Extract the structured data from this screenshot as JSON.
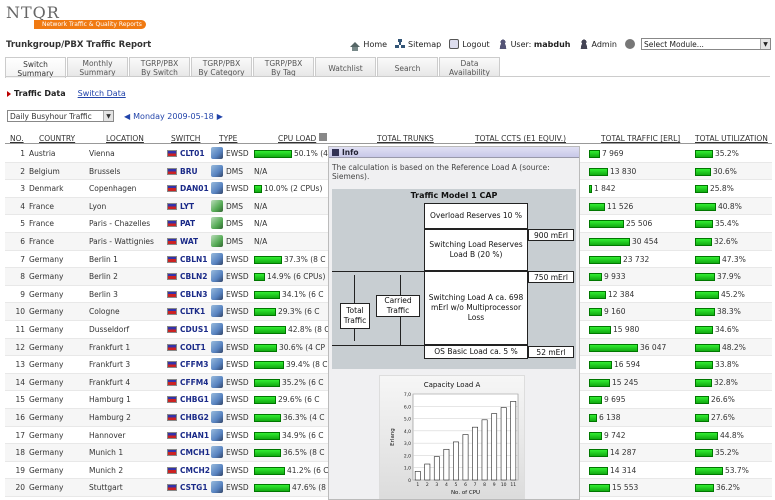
{
  "logo": {
    "text": "NTQR",
    "tagline": "Network Traffic & Quality Reports"
  },
  "page_title": "Trunkgroup/PBX Traffic Report",
  "topbar": {
    "home": "Home",
    "sitemap": "Sitemap",
    "logout": "Logout",
    "user_label": "User:",
    "user_name": "mabduh",
    "admin": "Admin",
    "module_select": "Select Module..."
  },
  "tabs": [
    {
      "line1": "Switch",
      "line2": "Summary",
      "active": true
    },
    {
      "line1": "Monthly",
      "line2": "Summary"
    },
    {
      "line1": "TGRP/PBX",
      "line2": "By Switch"
    },
    {
      "line1": "TGRP/PBX",
      "line2": "By Category"
    },
    {
      "line1": "TGRP/PBX",
      "line2": "By Tag"
    },
    {
      "line1": "Watchlist",
      "line2": ""
    },
    {
      "line1": "Search",
      "line2": ""
    },
    {
      "line1": "Data",
      "line2": "Availability"
    }
  ],
  "subnav": {
    "traffic_data": "Traffic Data",
    "switch_data": "Switch Data"
  },
  "filter": {
    "selected": "Daily Busyhour Traffic"
  },
  "date_nav": {
    "date": "Monday 2009-05-18"
  },
  "columns": {
    "no": "NO.",
    "country": "COUNTRY",
    "location": "LOCATION",
    "switch": "SWITCH",
    "type": "TYPE",
    "cpu_load": "CPU LOAD",
    "total_trunks": "TOTAL TRUNKS",
    "total_ccts": "TOTAL CCTS (E1 EQUIV.)",
    "total_traffic": "TOTAL TRAFFIC [ERL]",
    "total_util": "TOTAL UTILIZATION"
  },
  "rows": [
    {
      "no": "1",
      "country": "Austria",
      "location": "Vienna",
      "switch": "CLT01",
      "cube": "b",
      "type": "EWSD",
      "cpu": "50.1% (4",
      "cpu_pct": 50.1,
      "traffic": "7 969",
      "traffic_frac": 0.18,
      "util": "35.2%",
      "util_pct": 35.2
    },
    {
      "no": "2",
      "country": "Belgium",
      "location": "Brussels",
      "switch": "BRU",
      "cube": "b",
      "type": "DMS",
      "cpu": "N/A",
      "cpu_pct": 0,
      "traffic": "13 830",
      "traffic_frac": 0.31,
      "util": "30.6%",
      "util_pct": 30.6
    },
    {
      "no": "3",
      "country": "Denmark",
      "location": "Copenhagen",
      "switch": "DAN01",
      "cube": "b",
      "type": "EWSD",
      "cpu": "10.0% (2 CPUs)",
      "cpu_pct": 10.0,
      "traffic": "1 842",
      "traffic_frac": 0.05,
      "util": "25.8%",
      "util_pct": 25.8
    },
    {
      "no": "4",
      "country": "France",
      "location": "Lyon",
      "switch": "LYT",
      "cube": "g",
      "type": "DMS",
      "cpu": "N/A",
      "cpu_pct": 0,
      "traffic": "11 526",
      "traffic_frac": 0.26,
      "util": "40.8%",
      "util_pct": 40.8
    },
    {
      "no": "5",
      "country": "France",
      "location": "Paris - Chazelles",
      "switch": "PAT",
      "cube": "g",
      "type": "DMS",
      "cpu": "N/A",
      "cpu_pct": 0,
      "traffic": "25 506",
      "traffic_frac": 0.58,
      "util": "35.4%",
      "util_pct": 35.4
    },
    {
      "no": "6",
      "country": "France",
      "location": "Paris - Wattignies",
      "switch": "WAT",
      "cube": "g",
      "type": "DMS",
      "cpu": "N/A",
      "cpu_pct": 0,
      "traffic": "30 454",
      "traffic_frac": 0.69,
      "util": "32.6%",
      "util_pct": 32.6
    },
    {
      "no": "7",
      "country": "Germany",
      "location": "Berlin 1",
      "switch": "CBLN1",
      "cube": "b",
      "type": "EWSD",
      "cpu": "37.3% (8 C",
      "cpu_pct": 37.3,
      "traffic": "23 732",
      "traffic_frac": 0.54,
      "util": "47.3%",
      "util_pct": 47.3
    },
    {
      "no": "8",
      "country": "Germany",
      "location": "Berlin 2",
      "switch": "CBLN2",
      "cube": "b",
      "type": "EWSD",
      "cpu": "14.9% (6 CPUs)",
      "cpu_pct": 14.9,
      "traffic": "9 933",
      "traffic_frac": 0.22,
      "util": "37.9%",
      "util_pct": 37.9
    },
    {
      "no": "9",
      "country": "Germany",
      "location": "Berlin 3",
      "switch": "CBLN3",
      "cube": "b",
      "type": "EWSD",
      "cpu": "34.1% (6 C",
      "cpu_pct": 34.1,
      "traffic": "12 384",
      "traffic_frac": 0.28,
      "util": "45.2%",
      "util_pct": 45.2
    },
    {
      "no": "10",
      "country": "Germany",
      "location": "Cologne",
      "switch": "CLTK1",
      "cube": "b",
      "type": "EWSD",
      "cpu": "29.3% (6 C",
      "cpu_pct": 29.3,
      "traffic": "9 160",
      "traffic_frac": 0.21,
      "util": "38.3%",
      "util_pct": 38.3
    },
    {
      "no": "11",
      "country": "Germany",
      "location": "Dusseldorf",
      "switch": "CDUS1",
      "cube": "b",
      "type": "EWSD",
      "cpu": "42.8% (8 C",
      "cpu_pct": 42.8,
      "traffic": "15 980",
      "traffic_frac": 0.36,
      "util": "34.6%",
      "util_pct": 34.6
    },
    {
      "no": "12",
      "country": "Germany",
      "location": "Frankfurt 1",
      "switch": "COLT1",
      "cube": "b",
      "type": "EWSD",
      "cpu": "30.6% (4 CP",
      "cpu_pct": 30.6,
      "traffic": "36 047",
      "traffic_frac": 0.82,
      "util": "48.2%",
      "util_pct": 48.2
    },
    {
      "no": "13",
      "country": "Germany",
      "location": "Frankfurt 3",
      "switch": "CFFM3",
      "cube": "b",
      "type": "EWSD",
      "cpu": "39.4% (8 C",
      "cpu_pct": 39.4,
      "traffic": "16 594",
      "traffic_frac": 0.38,
      "util": "33.8%",
      "util_pct": 33.8
    },
    {
      "no": "14",
      "country": "Germany",
      "location": "Frankfurt 4",
      "switch": "CFFM4",
      "cube": "b",
      "type": "EWSD",
      "cpu": "35.2% (6 C",
      "cpu_pct": 35.2,
      "traffic": "15 245",
      "traffic_frac": 0.35,
      "util": "32.8%",
      "util_pct": 32.8
    },
    {
      "no": "15",
      "country": "Germany",
      "location": "Hamburg 1",
      "switch": "CHBG1",
      "cube": "b",
      "type": "EWSD",
      "cpu": "29.6% (6 C",
      "cpu_pct": 29.6,
      "traffic": "9 695",
      "traffic_frac": 0.22,
      "util": "26.6%",
      "util_pct": 26.6
    },
    {
      "no": "16",
      "country": "Germany",
      "location": "Hamburg 2",
      "switch": "CHBG2",
      "cube": "b",
      "type": "EWSD",
      "cpu": "36.3% (4 C",
      "cpu_pct": 36.3,
      "traffic": "6 138",
      "traffic_frac": 0.14,
      "util": "27.6%",
      "util_pct": 27.6
    },
    {
      "no": "17",
      "country": "Germany",
      "location": "Hannover",
      "switch": "CHAN1",
      "cube": "b",
      "type": "EWSD",
      "cpu": "34.9% (6 C",
      "cpu_pct": 34.9,
      "traffic": "9 742",
      "traffic_frac": 0.22,
      "util": "44.8%",
      "util_pct": 44.8
    },
    {
      "no": "18",
      "country": "Germany",
      "location": "Munich 1",
      "switch": "CMCH1",
      "cube": "b",
      "type": "EWSD",
      "cpu": "36.5% (8 C",
      "cpu_pct": 36.5,
      "traffic": "14 287",
      "traffic_frac": 0.32,
      "util": "35.2%",
      "util_pct": 35.2
    },
    {
      "no": "19",
      "country": "Germany",
      "location": "Munich 2",
      "switch": "CMCH2",
      "cube": "b",
      "type": "EWSD",
      "cpu": "41.2% (6 C",
      "cpu_pct": 41.2,
      "traffic": "14 314",
      "traffic_frac": 0.32,
      "util": "53.7%",
      "util_pct": 53.7
    },
    {
      "no": "20",
      "country": "Germany",
      "location": "Stuttgart",
      "switch": "CSTG1",
      "cube": "b",
      "type": "EWSD",
      "cpu": "47.6% (8 C",
      "cpu_pct": 47.6,
      "traffic": "15 553",
      "traffic_frac": 0.35,
      "util": "36.2%",
      "util_pct": 36.2
    }
  ],
  "info_popup": {
    "title": "Info",
    "description": "The calculation is based on the Reference Load A (source: Siemens).",
    "model_title": "Traffic Model 1 CAP",
    "overload": "Overload Reserves 10 %",
    "switching_b": "Switching Load Reserves Load B (20 %)",
    "val_900": "900 mErl",
    "val_750": "750 mErl",
    "switching_a": "Switching Load A ca. 698 mErl w/o Multiprocessor Loss",
    "os_basic": "OS Basic Load ca. 5 %",
    "val_52": "52 mErl",
    "carried": "Carried Traffic",
    "total": "Total Traffic"
  },
  "chart_data": {
    "type": "bar",
    "title": "Capacity Load A",
    "xlabel": "No. of CPU",
    "ylabel": "Erlang",
    "categories": [
      "1",
      "2",
      "3",
      "4",
      "5",
      "6",
      "7",
      "8",
      "9",
      "10",
      "11"
    ],
    "values": [
      0.7,
      1.3,
      1.9,
      2.5,
      3.1,
      3.7,
      4.3,
      4.9,
      5.4,
      5.9,
      6.4
    ],
    "ylim": [
      0,
      7
    ],
    "yticks": [
      "0",
      "1,0",
      "2,0",
      "3,0",
      "4,0",
      "5,0",
      "6,0",
      "7,0"
    ]
  }
}
